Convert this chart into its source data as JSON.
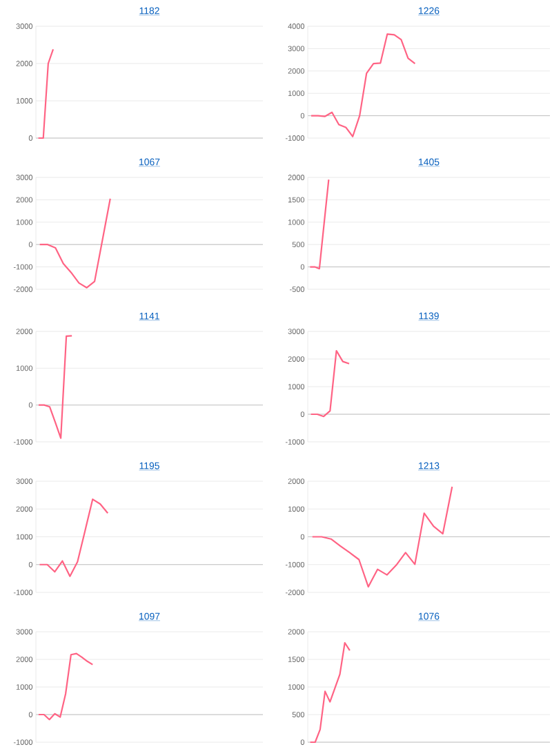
{
  "chart_data": [
    {
      "type": "line",
      "title": "1182",
      "color": "#ff6384",
      "grid": "y",
      "marker": "none",
      "tick_labels": "y",
      "ylim": [
        0,
        3000
      ],
      "yticks": [
        0,
        1000,
        2000,
        3000
      ],
      "categories": [
        null,
        null,
        null,
        null,
        null,
        null,
        null,
        null,
        null,
        null,
        null,
        null,
        null,
        null,
        null,
        null,
        null,
        null,
        null,
        null,
        null,
        null,
        null,
        null,
        null,
        null,
        null,
        null,
        null,
        null,
        null,
        null,
        null,
        null,
        null,
        null,
        null,
        null,
        null,
        null,
        null,
        null,
        null,
        null,
        null,
        null
      ],
      "values": [
        0,
        0,
        2000,
        2380,
        null,
        null,
        null,
        null,
        null,
        null,
        null,
        null,
        null,
        null,
        null,
        null,
        null,
        null,
        null,
        null,
        null,
        null,
        null,
        null,
        null,
        null,
        null,
        null,
        null,
        null,
        null,
        null,
        null,
        null,
        null,
        null,
        null,
        null,
        null,
        null,
        null,
        null,
        null,
        null,
        null,
        null
      ]
    },
    {
      "type": "line",
      "title": "1226",
      "color": "#ff6384",
      "grid": "y",
      "marker": "none",
      "tick_labels": "y",
      "ylim": [
        -1000,
        4000
      ],
      "yticks": [
        -1000,
        0,
        1000,
        2000,
        3000,
        4000
      ],
      "categories": [
        null,
        null,
        null,
        null,
        null,
        null,
        null,
        null,
        null,
        null,
        null,
        null,
        null,
        null,
        null,
        null,
        null,
        null,
        null,
        null,
        null,
        null,
        null,
        null,
        null,
        null,
        null,
        null,
        null,
        null,
        null,
        null,
        null,
        null,
        null
      ],
      "values": [
        0,
        0,
        -30,
        150,
        -400,
        -520,
        -930,
        0,
        1900,
        2330,
        2350,
        3650,
        3620,
        3400,
        2570,
        2330,
        null,
        null,
        null,
        null,
        null,
        null,
        null,
        null,
        null,
        null,
        null,
        null,
        null,
        null,
        null,
        null,
        null,
        null,
        null
      ]
    },
    {
      "type": "line",
      "title": "1067",
      "color": "#ff6384",
      "grid": "y",
      "marker": "none",
      "tick_labels": "y",
      "ylim": [
        -2000,
        3000
      ],
      "yticks": [
        -2000,
        -1000,
        0,
        1000,
        2000,
        3000
      ],
      "categories": [
        null,
        null,
        null,
        null,
        null,
        null,
        null,
        null,
        null,
        null,
        null,
        null,
        null,
        null,
        null,
        null,
        null,
        null,
        null,
        null,
        null,
        null,
        null,
        null,
        null,
        null,
        null,
        null,
        null
      ],
      "values": [
        0,
        0,
        -150,
        -850,
        -1250,
        -1720,
        -1930,
        -1650,
        200,
        2050,
        null,
        null,
        null,
        null,
        null,
        null,
        null,
        null,
        null,
        null,
        null,
        null,
        null,
        null,
        null,
        null,
        null,
        null,
        null
      ]
    },
    {
      "type": "line",
      "title": "1405",
      "color": "#ff6384",
      "grid": "y",
      "marker": "none",
      "tick_labels": "y",
      "ylim": [
        -500,
        2000
      ],
      "yticks": [
        -500,
        0,
        500,
        1000,
        1500,
        2000
      ],
      "categories": [
        null,
        null,
        null,
        null,
        null,
        null,
        null,
        null,
        null,
        null,
        null,
        null,
        null,
        null,
        null,
        null,
        null,
        null,
        null,
        null,
        null,
        null,
        null,
        null,
        null,
        null,
        null,
        null,
        null,
        null,
        null,
        null,
        null,
        null,
        null,
        null,
        null,
        null,
        null,
        null,
        null,
        null,
        null,
        null,
        null,
        null,
        null,
        null,
        null,
        null,
        null,
        null
      ],
      "values": [
        0,
        0,
        -40,
        960,
        1950,
        null,
        null,
        null,
        null,
        null,
        null,
        null,
        null,
        null,
        null,
        null,
        null,
        null,
        null,
        null,
        null,
        null,
        null,
        null,
        null,
        null,
        null,
        null,
        null,
        null,
        null,
        null,
        null,
        null,
        null,
        null,
        null,
        null,
        null,
        null,
        null,
        null,
        null,
        null,
        null,
        null,
        null,
        null,
        null,
        null,
        null,
        null
      ]
    },
    {
      "type": "line",
      "title": "1141",
      "color": "#ff6384",
      "grid": "y",
      "marker": "none",
      "tick_labels": "y",
      "ylim": [
        -1000,
        2000
      ],
      "yticks": [
        -1000,
        0,
        1000,
        2000
      ],
      "categories": [
        null,
        null,
        null,
        null,
        null,
        null,
        null,
        null,
        null,
        null,
        null,
        null,
        null,
        null,
        null,
        null,
        null,
        null,
        null,
        null,
        null,
        null,
        null,
        null,
        null,
        null,
        null,
        null,
        null,
        null,
        null,
        null,
        null,
        null,
        null,
        null,
        null,
        null,
        null,
        null,
        null
      ],
      "values": [
        0,
        0,
        -50,
        -470,
        -900,
        1870,
        1880,
        null,
        null,
        null,
        null,
        null,
        null,
        null,
        null,
        null,
        null,
        null,
        null,
        null,
        null,
        null,
        null,
        null,
        null,
        null,
        null,
        null,
        null,
        null,
        null,
        null,
        null,
        null,
        null,
        null,
        null,
        null,
        null,
        null,
        null
      ]
    },
    {
      "type": "line",
      "title": "1139",
      "color": "#ff6384",
      "grid": "y",
      "marker": "none",
      "tick_labels": "y",
      "ylim": [
        -1000,
        3000
      ],
      "yticks": [
        -1000,
        0,
        1000,
        2000,
        3000
      ],
      "categories": [
        null,
        null,
        null,
        null,
        null,
        null,
        null,
        null,
        null,
        null,
        null,
        null,
        null,
        null,
        null,
        null,
        null,
        null,
        null,
        null,
        null,
        null,
        null,
        null,
        null,
        null,
        null,
        null,
        null,
        null,
        null,
        null,
        null,
        null,
        null,
        null,
        null,
        null
      ],
      "values": [
        0,
        0,
        -80,
        120,
        2300,
        1910,
        1830,
        null,
        null,
        null,
        null,
        null,
        null,
        null,
        null,
        null,
        null,
        null,
        null,
        null,
        null,
        null,
        null,
        null,
        null,
        null,
        null,
        null,
        null,
        null,
        null,
        null,
        null,
        null,
        null,
        null,
        null,
        null
      ]
    },
    {
      "type": "line",
      "title": "1195",
      "color": "#ff6384",
      "grid": "y",
      "marker": "none",
      "tick_labels": "y",
      "ylim": [
        -1000,
        3000
      ],
      "yticks": [
        -1000,
        0,
        1000,
        2000,
        3000
      ],
      "categories": [
        null,
        null,
        null,
        null,
        null,
        null,
        null,
        null,
        null,
        null,
        null,
        null,
        null,
        null,
        null,
        null,
        null,
        null,
        null,
        null,
        null,
        null,
        null,
        null,
        null,
        null,
        null,
        null,
        null,
        null
      ],
      "values": [
        0,
        0,
        -260,
        130,
        -420,
        100,
        1220,
        2350,
        2180,
        1850,
        null,
        null,
        null,
        null,
        null,
        null,
        null,
        null,
        null,
        null,
        null,
        null,
        null,
        null,
        null,
        null,
        null,
        null,
        null,
        null
      ]
    },
    {
      "type": "line",
      "title": "1213",
      "color": "#ff6384",
      "grid": "y",
      "marker": "none",
      "tick_labels": "y",
      "ylim": [
        -2000,
        2000
      ],
      "yticks": [
        -2000,
        -1000,
        0,
        1000,
        2000
      ],
      "categories": [
        null,
        null,
        null,
        null,
        null,
        null,
        null,
        null,
        null,
        null,
        null,
        null,
        null,
        null,
        null,
        null,
        null,
        null,
        null,
        null,
        null,
        null,
        null,
        null,
        null,
        null
      ],
      "values": [
        0,
        0,
        -80,
        -330,
        -570,
        -820,
        -1800,
        -1170,
        -1370,
        -1020,
        -570,
        -990,
        850,
        380,
        110,
        1800,
        null,
        null,
        null,
        null,
        null,
        null,
        null,
        null,
        null,
        null
      ]
    },
    {
      "type": "line",
      "title": "1097",
      "color": "#ff6384",
      "grid": "y",
      "marker": "none",
      "tick_labels": "y",
      "ylim": [
        -1000,
        3000
      ],
      "yticks": [
        -1000,
        0,
        1000,
        2000,
        3000
      ],
      "categories": [
        null,
        null,
        null,
        null,
        null,
        null,
        null,
        null,
        null,
        null,
        null,
        null,
        null,
        null,
        null,
        null,
        null,
        null,
        null,
        null,
        null,
        null,
        null,
        null,
        null,
        null,
        null,
        null,
        null,
        null,
        null,
        null,
        null,
        null,
        null,
        null,
        null,
        null,
        null,
        null,
        null,
        null
      ],
      "values": [
        0,
        0,
        -180,
        30,
        -90,
        750,
        2170,
        2210,
        2080,
        1930,
        1810,
        null,
        null,
        null,
        null,
        null,
        null,
        null,
        null,
        null,
        null,
        null,
        null,
        null,
        null,
        null,
        null,
        null,
        null,
        null,
        null,
        null,
        null,
        null,
        null,
        null,
        null,
        null,
        null,
        null,
        null,
        null
      ]
    },
    {
      "type": "line",
      "title": "1076",
      "color": "#ff6384",
      "grid": "y",
      "marker": "none",
      "tick_labels": "y",
      "ylim": [
        0,
        2000
      ],
      "yticks": [
        0,
        500,
        1000,
        1500,
        2000
      ],
      "categories": [
        null,
        null,
        null,
        null,
        null,
        null,
        null,
        null,
        null,
        null,
        null,
        null,
        null,
        null,
        null,
        null,
        null,
        null,
        null,
        null,
        null,
        null,
        null,
        null,
        null,
        null,
        null,
        null,
        null,
        null,
        null,
        null,
        null,
        null,
        null,
        null,
        null,
        null,
        null,
        null,
        null,
        null,
        null,
        null,
        null,
        null,
        null,
        null,
        null
      ],
      "values": [
        0,
        0,
        230,
        920,
        730,
        980,
        1230,
        1800,
        1660,
        null,
        null,
        null,
        null,
        null,
        null,
        null,
        null,
        null,
        null,
        null,
        null,
        null,
        null,
        null,
        null,
        null,
        null,
        null,
        null,
        null,
        null,
        null,
        null,
        null,
        null,
        null,
        null,
        null,
        null,
        null,
        null,
        null,
        null,
        null,
        null,
        null,
        null,
        null,
        null
      ]
    }
  ]
}
